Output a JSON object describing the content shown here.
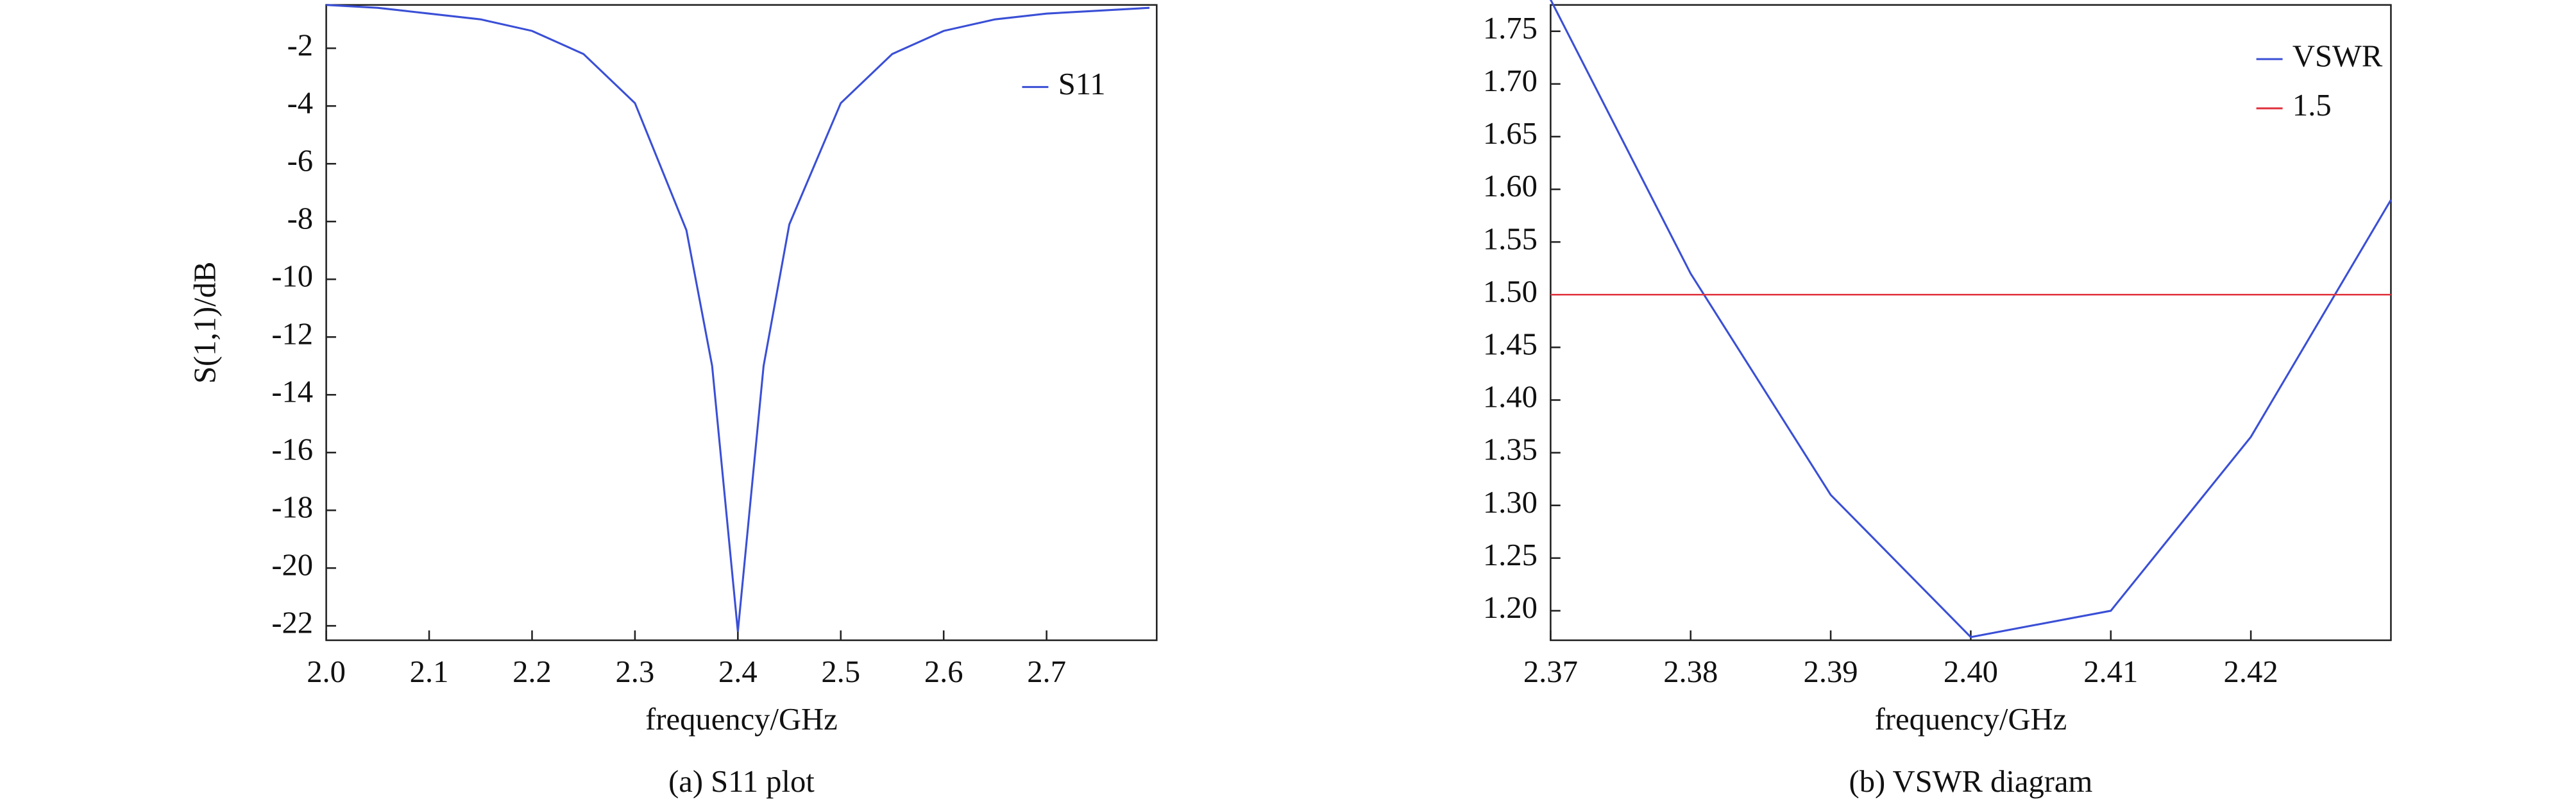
{
  "chart_data": [
    {
      "type": "line",
      "caption": "(a) S11 plot",
      "xlabel": "frequency/GHz",
      "ylabel": "S(1,1)/dB",
      "x": [
        2.0,
        2.05,
        2.1,
        2.15,
        2.2,
        2.25,
        2.3,
        2.35,
        2.375,
        2.4,
        2.425,
        2.45,
        2.5,
        2.55,
        2.6,
        2.65,
        2.7,
        2.75,
        2.8
      ],
      "series": [
        {
          "name": "S11",
          "color": "#3a4fd6",
          "values": [
            -0.5,
            -0.6,
            -0.8,
            -1.0,
            -1.4,
            -2.2,
            -3.9,
            -8.3,
            -13.0,
            -22.2,
            -13.0,
            -8.1,
            -3.9,
            -2.2,
            -1.4,
            -1.0,
            -0.8,
            -0.7,
            -0.6
          ]
        }
      ],
      "xlim": [
        2.0,
        2.807
      ],
      "ylim": [
        -22.5,
        -0.5
      ],
      "xticks": [
        {
          "value": 2.0,
          "label": "2.0"
        },
        2.1,
        2.2,
        2.3,
        2.4,
        2.5,
        2.6,
        2.7
      ],
      "yticks": [
        -2,
        -4,
        -6,
        -8,
        -10,
        -12,
        -14,
        -16,
        -18,
        -20,
        -22
      ],
      "legend": "upper right"
    },
    {
      "type": "line",
      "caption": "(b) VSWR diagram",
      "xlabel": "frequency/GHz",
      "x": [
        2.37,
        2.38,
        2.39,
        2.4,
        2.41,
        2.42,
        2.43
      ],
      "series": [
        {
          "name": "VSWR",
          "color": "#3a4fd6",
          "values": [
            1.78,
            1.52,
            1.31,
            1.175,
            1.2,
            1.365,
            1.59
          ]
        }
      ],
      "hline": {
        "name": "1.5",
        "value": 1.5,
        "color": "#e0323c"
      },
      "xlim": [
        2.37,
        2.43
      ],
      "ylim": [
        1.172,
        1.775
      ],
      "xticks": [
        2.37,
        2.38,
        2.39,
        {
          "value": 2.4,
          "label": "2.40"
        },
        2.41,
        2.42
      ],
      "yticks": [
        {
          "value": 1.2,
          "label": "1.20"
        },
        1.25,
        {
          "value": 1.3,
          "label": "1.30"
        },
        1.35,
        {
          "value": 1.4,
          "label": "1.40"
        },
        1.45,
        {
          "value": 1.5,
          "label": "1.50"
        },
        1.55,
        {
          "value": 1.6,
          "label": "1.60"
        },
        1.65,
        {
          "value": 1.7,
          "label": "1.70"
        },
        1.75
      ],
      "legend": "upper right"
    }
  ]
}
